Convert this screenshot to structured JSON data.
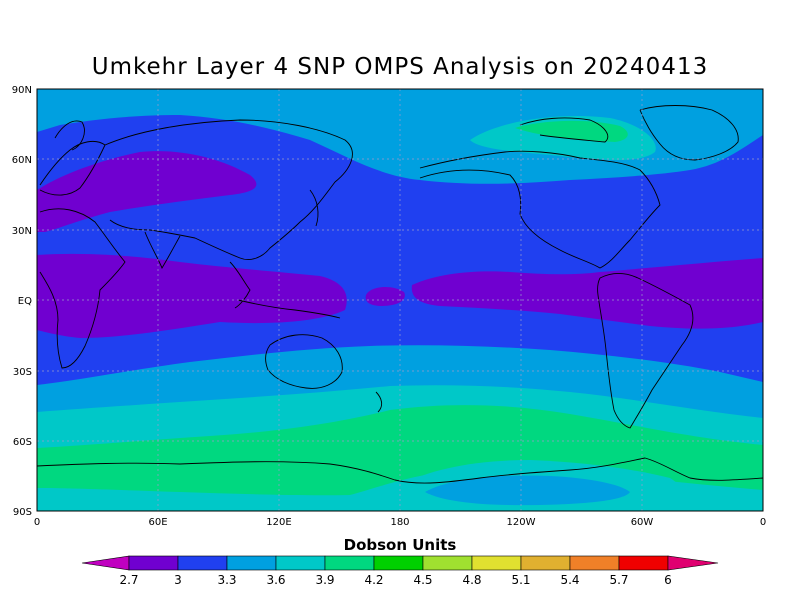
{
  "title": "Umkehr Layer 4 SNP OMPS Analysis on 20240413",
  "map": {
    "lat_labels": [
      "90N",
      "60N",
      "30N",
      "EQ",
      "30S",
      "60S",
      "90S"
    ],
    "lon_labels": [
      "0",
      "60E",
      "120E",
      "180",
      "120W",
      "60W",
      "0"
    ]
  },
  "colorbar": {
    "title": "Dobson Units",
    "levels": [
      "2.7",
      "3",
      "3.3",
      "3.6",
      "3.9",
      "4.2",
      "4.5",
      "4.8",
      "5.1",
      "5.4",
      "5.7",
      "6"
    ],
    "colors": [
      "#c000c0",
      "#7000d0",
      "#2040f0",
      "#00a0e0",
      "#00c8c8",
      "#00d880",
      "#00d000",
      "#a0e030",
      "#e0e030",
      "#e0b030",
      "#f08028",
      "#f00000",
      "#e00070"
    ]
  }
}
